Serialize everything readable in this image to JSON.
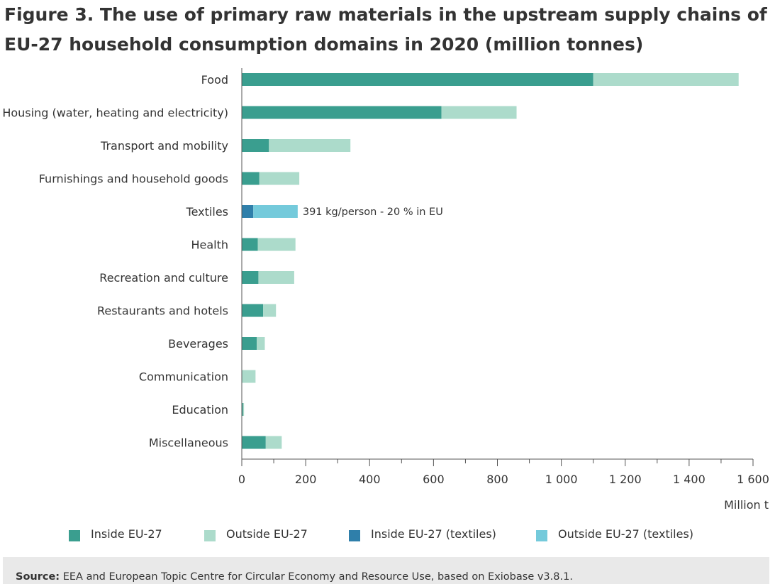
{
  "title": "Figure 3. The use of primary raw materials in the upstream supply chains of EU-27 household consumption domains in 2020 (million tonnes)",
  "colors": {
    "inside": "#3a9e8f",
    "outside": "#acdbcb",
    "inside_textiles": "#2f7faa",
    "outside_textiles": "#74cadb",
    "axis": "#555555",
    "text": "#333333"
  },
  "legend": [
    {
      "label": "Inside EU-27",
      "color_key": "inside"
    },
    {
      "label": "Outside EU-27",
      "color_key": "outside"
    },
    {
      "label": "Inside EU-27 (textiles)",
      "color_key": "inside_textiles"
    },
    {
      "label": "Outside EU-27 (textiles)",
      "color_key": "outside_textiles"
    }
  ],
  "source": {
    "prefix": "Source:",
    "text": " EEA and European Topic Centre for Circular Economy and Resource Use, based on Exiobase v3.8.1."
  },
  "chart_data": {
    "type": "bar",
    "orientation": "horizontal",
    "stacked": true,
    "categories": [
      "Food",
      "Housing (water, heating and electricity)",
      "Transport and mobility",
      "Furnishings and household goods",
      "Textiles",
      "Health",
      "Recreation and culture",
      "Restaurants and hotels",
      "Beverages",
      "Communication",
      "Education",
      "Miscellaneous"
    ],
    "series": [
      {
        "name": "Inside EU-27",
        "values": [
          1100,
          625,
          85,
          55,
          0,
          50,
          52,
          67,
          47,
          0,
          4,
          75
        ]
      },
      {
        "name": "Outside EU-27",
        "values": [
          455,
          235,
          255,
          125,
          0,
          118,
          112,
          40,
          25,
          43,
          3,
          50
        ]
      },
      {
        "name": "Inside EU-27 (textiles)",
        "values": [
          0,
          0,
          0,
          0,
          36,
          0,
          0,
          0,
          0,
          0,
          0,
          0
        ]
      },
      {
        "name": "Outside EU-27 (textiles)",
        "values": [
          0,
          0,
          0,
          0,
          139,
          0,
          0,
          0,
          0,
          0,
          0,
          0
        ]
      }
    ],
    "annotation": {
      "category": "Textiles",
      "text": "391 kg/person - 20 % in EU"
    },
    "xlim": [
      0,
      1600
    ],
    "xticks": [
      0,
      200,
      400,
      600,
      800,
      1000,
      1200,
      1400,
      1600
    ],
    "xtick_labels": [
      "0",
      "200",
      "400",
      "600",
      "800",
      "1 000",
      "1 200",
      "1 400",
      "1 600"
    ],
    "xlabel": "Million t",
    "ylabel": "",
    "grid": false
  }
}
